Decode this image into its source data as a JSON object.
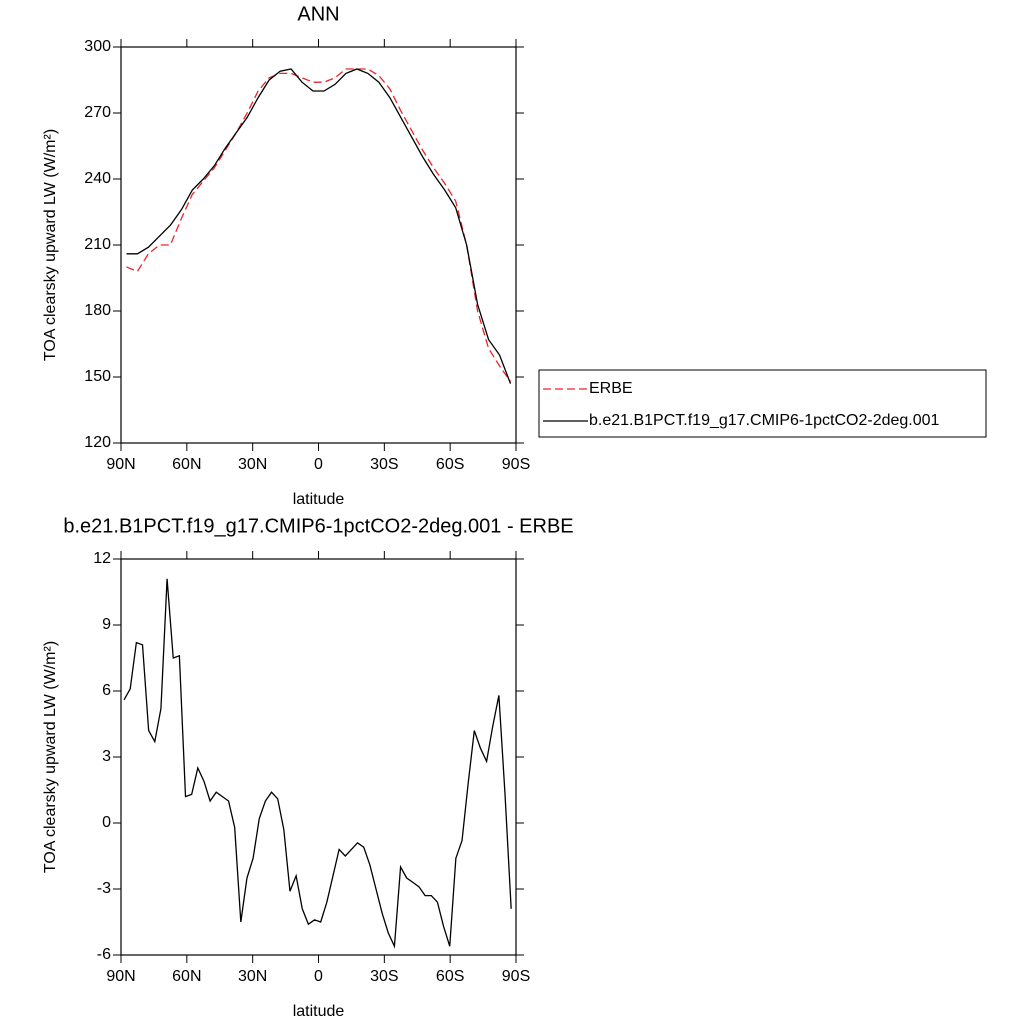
{
  "chart_data": [
    {
      "type": "line",
      "title": "ANN",
      "xlabel": "latitude",
      "ylabel": "TOA clearsky upward LW (W/m²)",
      "x": [
        87.5,
        82.5,
        77.5,
        72.5,
        67.5,
        62.5,
        57.5,
        52.5,
        47.5,
        42.5,
        37.5,
        32.5,
        27.5,
        22.5,
        17.5,
        12.5,
        7.5,
        2.5,
        -2.5,
        -7.5,
        -12.5,
        -17.5,
        -22.5,
        -27.5,
        -32.5,
        -37.5,
        -42.5,
        -47.5,
        -52.5,
        -57.5,
        -62.5,
        -67.5,
        -72.5,
        -77.5,
        -82.5,
        -87.5
      ],
      "series": [
        {
          "name": "ERBE",
          "color": "#e8262a",
          "dashed": true,
          "values": [
            200,
            198,
            206,
            210,
            210,
            222,
            233,
            239,
            245,
            253,
            261,
            270,
            280,
            286,
            288,
            288,
            286,
            284,
            284,
            286,
            290,
            290,
            290,
            287,
            281,
            271,
            262,
            253,
            245,
            238,
            230,
            210,
            180,
            163,
            155,
            148
          ]
        },
        {
          "name": "b.e21.B1PCT.f19_g17.CMIP6-1pctCO2-2deg.001",
          "color": "#000000",
          "dashed": false,
          "values": [
            206,
            206,
            209,
            214,
            219,
            226,
            235,
            240,
            246,
            254,
            261,
            268,
            277,
            285,
            289,
            290,
            284,
            280,
            280,
            283,
            288,
            290,
            288,
            284,
            277,
            268,
            259,
            250,
            242,
            235,
            227,
            210,
            183,
            167,
            160,
            147
          ]
        }
      ],
      "xlim": [
        90,
        -90
      ],
      "xticks": [
        {
          "value": 90,
          "label": "90N"
        },
        {
          "value": 60,
          "label": "60N"
        },
        {
          "value": 30,
          "label": "30N"
        },
        0,
        {
          "value": -30,
          "label": "30S"
        },
        {
          "value": -60,
          "label": "60S"
        },
        {
          "value": -90,
          "label": "90S"
        }
      ],
      "ylim": [
        120,
        300
      ],
      "yticks": [
        120,
        150,
        180,
        210,
        240,
        270,
        300
      ],
      "legend": "right"
    },
    {
      "type": "line",
      "title": "b.e21.B1PCT.f19_g17.CMIP6-1pctCO2-2deg.001 - ERBE",
      "xlabel": "latitude",
      "ylabel": "TOA clearsky upward LW (W/m²)",
      "x": [
        88.6,
        85.8,
        83.0,
        80.2,
        77.4,
        74.6,
        71.8,
        69.0,
        66.2,
        63.4,
        60.6,
        57.8,
        55.0,
        52.2,
        49.4,
        46.6,
        43.8,
        41.0,
        38.2,
        35.4,
        32.6,
        29.8,
        27.0,
        24.2,
        21.4,
        18.6,
        15.8,
        13.0,
        10.2,
        7.4,
        4.6,
        1.8,
        -1.0,
        -3.8,
        -6.6,
        -9.4,
        -12.2,
        -15.0,
        -17.8,
        -20.6,
        -23.4,
        -26.2,
        -29.0,
        -31.8,
        -34.6,
        -37.4,
        -40.2,
        -43.0,
        -45.8,
        -48.6,
        -51.4,
        -54.2,
        -57.0,
        -59.8,
        -62.6,
        -65.4,
        -68.2,
        -71.0,
        -73.8,
        -76.6,
        -79.4,
        -82.2,
        -85.0,
        -87.8
      ],
      "series": [
        {
          "color": "#000000",
          "dashed": false,
          "values": [
            5.6,
            6.1,
            8.2,
            8.1,
            4.2,
            3.7,
            5.2,
            11.1,
            7.5,
            7.6,
            1.2,
            1.3,
            2.5,
            1.9,
            1.0,
            1.4,
            1.2,
            1.0,
            -0.2,
            -4.5,
            -2.5,
            -1.6,
            0.2,
            1.0,
            1.4,
            1.1,
            -0.3,
            -3.1,
            -2.4,
            -3.9,
            -4.6,
            -4.4,
            -4.5,
            -3.6,
            -2.4,
            -1.2,
            -1.5,
            -1.2,
            -0.9,
            -1.1,
            -1.9,
            -3.0,
            -4.1,
            -5.0,
            -5.6,
            -2.0,
            -2.5,
            -2.7,
            -2.9,
            -3.3,
            -3.3,
            -3.6,
            -4.7,
            -5.6,
            -1.6,
            -0.8,
            1.8,
            4.2,
            3.4,
            2.8,
            4.4,
            5.8,
            1.3,
            -3.9
          ]
        }
      ],
      "xlim": [
        90,
        -90
      ],
      "xticks": [
        {
          "value": 90,
          "label": "90N"
        },
        {
          "value": 60,
          "label": "60N"
        },
        {
          "value": 30,
          "label": "30N"
        },
        0,
        {
          "value": -30,
          "label": "30S"
        },
        {
          "value": -60,
          "label": "60S"
        },
        {
          "value": -90,
          "label": "90S"
        }
      ],
      "ylim": [
        -6,
        12
      ],
      "yticks": [
        -6,
        -3,
        0,
        3,
        6,
        9,
        12
      ]
    }
  ]
}
